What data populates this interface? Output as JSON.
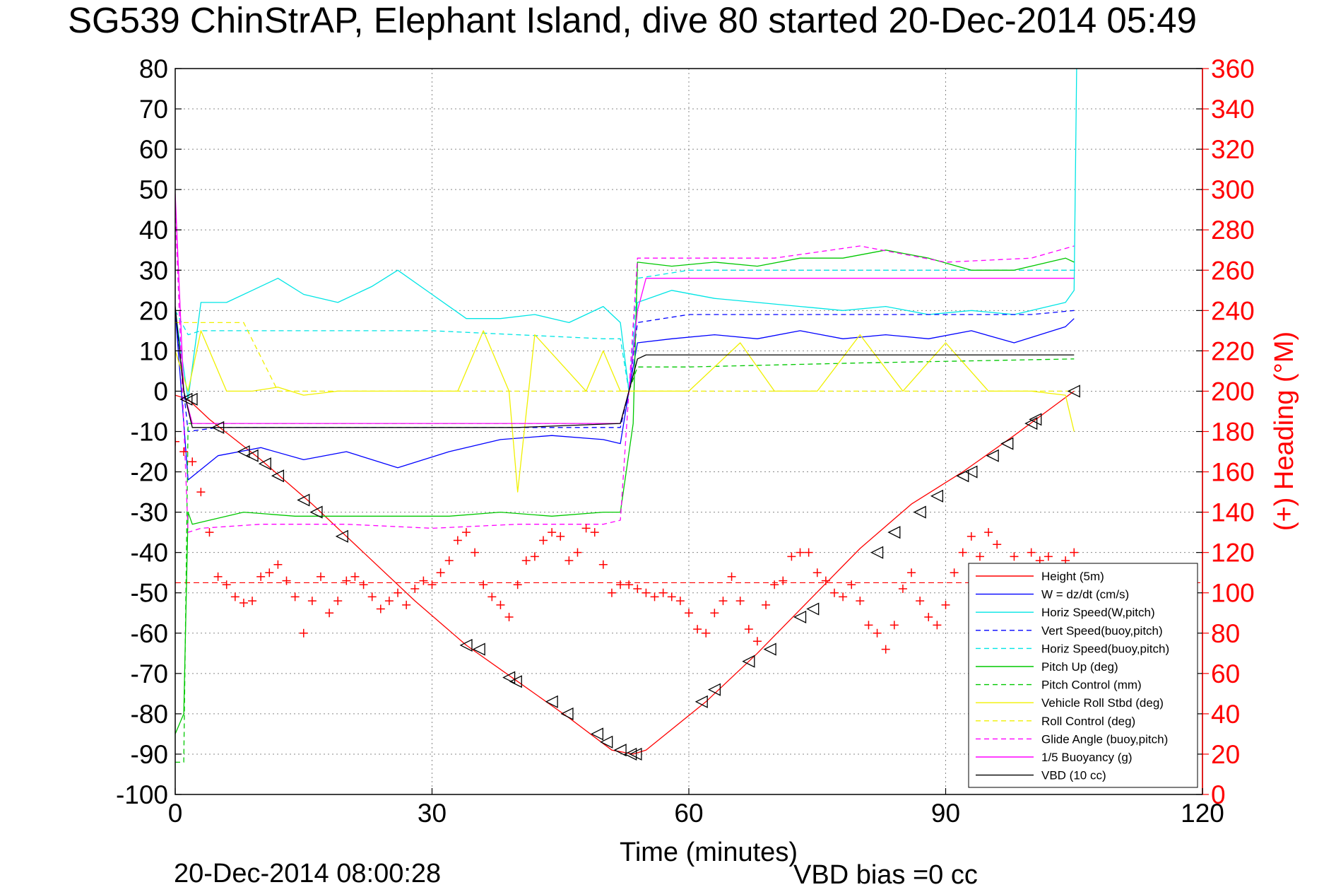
{
  "chart_data": {
    "type": "line",
    "title": "SG539 ChinStrAP, Elephant Island, dive 80 started 20-Dec-2014 05:49",
    "xlabel": "Time (minutes)",
    "ylabel_right": "(+) Heading (°M)",
    "footer_left": "20-Dec-2014 08:00:28",
    "footer_right": "VBD bias =0 cc",
    "xlim": [
      0,
      120
    ],
    "ylim_left": [
      -100,
      80
    ],
    "ylim_right": [
      0,
      360
    ],
    "x_ticks": [
      0,
      30,
      60,
      90,
      120
    ],
    "y_ticks_left": [
      80,
      70,
      60,
      50,
      40,
      30,
      20,
      10,
      0,
      -10,
      -20,
      -30,
      -40,
      -50,
      -60,
      -70,
      -80,
      -90,
      -100
    ],
    "y_ticks_right": [
      360,
      340,
      320,
      300,
      280,
      260,
      240,
      220,
      200,
      180,
      160,
      140,
      120,
      100,
      80,
      60,
      40,
      20,
      0
    ],
    "grid": true,
    "legend_position": "bottom-right",
    "colors": {
      "axis_right": "#ff0000",
      "grid": "#888888"
    },
    "series": [
      {
        "name": "Height (5m)",
        "color": "#ff0000",
        "dash": "solid",
        "x": [
          0,
          1.5,
          4,
          10,
          16,
          22,
          28,
          34,
          40,
          46,
          51,
          53.5,
          55,
          62,
          68,
          74,
          80,
          86,
          92,
          98,
          105
        ],
        "y": [
          -1,
          -2,
          -7,
          -17,
          -28,
          -40,
          -52,
          -63,
          -72,
          -81,
          -89,
          -90,
          -89,
          -77,
          -65,
          -52,
          -39,
          -28,
          -20,
          -11,
          0
        ]
      },
      {
        "name": "W = dz/dt (cm/s)",
        "color": "#0000ff",
        "dash": "solid",
        "x": [
          0,
          1.5,
          5,
          10,
          15,
          20,
          26,
          32,
          38,
          44,
          50,
          52,
          53,
          54,
          58,
          63,
          68,
          73,
          78,
          83,
          88,
          93,
          98,
          104,
          105
        ],
        "y": [
          20,
          -22,
          -16,
          -14,
          -17,
          -15,
          -19,
          -15,
          -12,
          -11,
          -12,
          -13,
          0,
          12,
          13,
          14,
          13,
          15,
          13,
          14,
          13,
          15,
          12,
          16,
          18
        ]
      },
      {
        "name": "Horiz Speed(W,pitch)",
        "color": "#00e5e5",
        "dash": "solid",
        "x": [
          0,
          1.5,
          3,
          6,
          9,
          12,
          15,
          19,
          23,
          26,
          30,
          34,
          38,
          42,
          46,
          50,
          52,
          53,
          54,
          58,
          63,
          68,
          73,
          78,
          83,
          88,
          93,
          98,
          104,
          105,
          105.3
        ],
        "y": [
          20,
          -2,
          22,
          22,
          25,
          28,
          24,
          22,
          26,
          30,
          24,
          18,
          18,
          19,
          17,
          21,
          17,
          0,
          22,
          25,
          23,
          22,
          21,
          20,
          21,
          19,
          20,
          19,
          22,
          25,
          80
        ]
      },
      {
        "name": "Vert Speed(buoy,pitch)",
        "color": "#0000ff",
        "dash": "dashed",
        "x": [
          0,
          1.5,
          5,
          20,
          35,
          50,
          52,
          53,
          54,
          60,
          70,
          80,
          90,
          100,
          105
        ],
        "y": [
          20,
          -10,
          -9,
          -9,
          -9,
          -9,
          -9,
          0,
          17,
          19,
          19,
          19,
          19,
          19,
          20
        ]
      },
      {
        "name": "Horiz Speed(buoy,pitch)",
        "color": "#00e5e5",
        "dash": "dashed",
        "x": [
          0,
          1.5,
          3,
          10,
          20,
          30,
          40,
          50,
          52,
          53,
          54,
          60,
          70,
          80,
          90,
          100,
          105
        ],
        "y": [
          20,
          14,
          15,
          15,
          15,
          15,
          14,
          13,
          13,
          0,
          28,
          30,
          30,
          30,
          30,
          30,
          30
        ]
      },
      {
        "name": "Pitch Up (deg)",
        "color": "#00c800",
        "dash": "solid",
        "x": [
          0,
          1,
          1.5,
          2,
          4,
          8,
          14,
          20,
          26,
          32,
          38,
          44,
          50,
          52,
          53.5,
          54,
          58,
          63,
          68,
          73,
          78,
          83,
          88,
          93,
          98,
          104,
          105
        ],
        "y": [
          -85,
          -80,
          -30,
          -33,
          -32,
          -30,
          -31,
          -31,
          -31,
          -31,
          -30,
          -31,
          -30,
          -30,
          -8,
          32,
          31,
          32,
          31,
          33,
          33,
          35,
          33,
          30,
          30,
          33,
          32
        ]
      },
      {
        "name": "Pitch Control (mm)",
        "color": "#00c800",
        "dash": "dashed",
        "x": [
          0,
          1,
          1.5,
          3,
          20,
          40,
          52,
          53,
          54,
          60,
          80,
          105
        ],
        "y": [
          -92,
          -92,
          -8,
          -8,
          -8,
          -8,
          -8,
          0,
          6,
          6,
          7,
          8
        ]
      },
      {
        "name": "Vehicle Roll Stbd (deg)",
        "color": "#f0f000",
        "dash": "solid",
        "x": [
          0,
          1.5,
          3,
          6,
          9,
          12,
          15,
          19,
          23,
          28,
          33,
          36,
          39,
          40,
          42,
          48,
          50,
          52,
          54,
          60,
          66,
          70,
          75,
          80,
          85,
          90,
          95,
          100,
          104,
          105
        ],
        "y": [
          10,
          0,
          15,
          0,
          0,
          1,
          -1,
          0,
          0,
          0,
          0,
          15,
          0,
          -25,
          14,
          0,
          10,
          0,
          0,
          0,
          12,
          0,
          0,
          14,
          0,
          12,
          0,
          0,
          -1,
          -10
        ]
      },
      {
        "name": "Roll Control (deg)",
        "color": "#f0f000",
        "dash": "dashed",
        "x": [
          0,
          1.5,
          2,
          8,
          12,
          20,
          30,
          40,
          52,
          54,
          60,
          70,
          80,
          90,
          100,
          105
        ],
        "y": [
          17,
          17,
          17,
          17,
          0,
          0,
          0,
          0,
          0,
          0,
          0,
          0,
          0,
          0,
          0,
          0
        ]
      },
      {
        "name": "Glide Angle (buoy,pitch)",
        "color": "#ff00ff",
        "dash": "dashed",
        "x": [
          0,
          1.5,
          3,
          10,
          20,
          30,
          40,
          50,
          52,
          53,
          54,
          60,
          70,
          80,
          90,
          100,
          105
        ],
        "y": [
          45,
          -35,
          -34,
          -33,
          -33,
          -34,
          -33,
          -33,
          -32,
          0,
          33,
          33,
          33,
          36,
          32,
          33,
          36
        ]
      },
      {
        "name": "1/5 Buoyancy (g)",
        "color": "#ff00ff",
        "dash": "solid",
        "x": [
          0,
          1,
          2,
          3,
          20,
          40,
          52,
          53,
          54,
          55,
          70,
          90,
          105
        ],
        "y": [
          49,
          0,
          -8,
          -8,
          -8,
          -8,
          -8,
          0,
          20,
          28,
          28,
          28,
          28
        ]
      },
      {
        "name": "VBD (10 cc)",
        "color": "#000000",
        "dash": "solid",
        "x": [
          0,
          1,
          2,
          3,
          20,
          40,
          52,
          53,
          54,
          55,
          70,
          90,
          105
        ],
        "y": [
          21,
          0,
          -9,
          -9,
          -9,
          -9,
          -8,
          0,
          8,
          9,
          9,
          9,
          9
        ]
      }
    ],
    "heading_series": {
      "name": "Heading",
      "color": "#ff0000",
      "marker": "+",
      "axis": "right",
      "x": [
        0,
        1,
        2,
        3,
        4,
        5,
        6,
        7,
        8,
        9,
        10,
        11,
        12,
        13,
        14,
        15,
        16,
        17,
        18,
        19,
        20,
        21,
        22,
        23,
        24,
        25,
        26,
        27,
        28,
        29,
        30,
        31,
        32,
        33,
        34,
        35,
        36,
        37,
        38,
        39,
        40,
        41,
        42,
        43,
        44,
        45,
        46,
        47,
        48,
        49,
        50,
        51,
        52,
        53,
        54,
        55,
        56,
        57,
        58,
        59,
        60,
        61,
        62,
        63,
        64,
        65,
        66,
        67,
        68,
        69,
        70,
        71,
        72,
        73,
        74,
        75,
        76,
        77,
        78,
        79,
        80,
        81,
        82,
        83,
        84,
        85,
        86,
        87,
        88,
        89,
        90,
        91,
        92,
        93,
        94,
        95,
        96,
        97,
        98,
        99,
        100,
        101,
        102,
        103,
        104,
        105
      ],
      "y": [
        175,
        170,
        165,
        150,
        130,
        108,
        104,
        98,
        95,
        96,
        108,
        110,
        114,
        106,
        98,
        80,
        96,
        108,
        90,
        96,
        106,
        108,
        104,
        98,
        92,
        96,
        100,
        94,
        102,
        106,
        104,
        110,
        116,
        126,
        130,
        120,
        104,
        98,
        94,
        88,
        104,
        116,
        118,
        126,
        130,
        128,
        116,
        120,
        132,
        130,
        114,
        100,
        104,
        104,
        102,
        100,
        98,
        100,
        98,
        96,
        90,
        82,
        80,
        90,
        96,
        108,
        96,
        82,
        76,
        94,
        104,
        106,
        118,
        120,
        120,
        110,
        106,
        100,
        98,
        104,
        96,
        84,
        80,
        72,
        84,
        102,
        110,
        96,
        88,
        84,
        94,
        110,
        120,
        128,
        118,
        130,
        124,
        110,
        118,
        112,
        120,
        116,
        118,
        112,
        116,
        120
      ]
    },
    "heading_mean": {
      "name": "Heading mean",
      "color": "#ff0000",
      "dash": "dashed",
      "axis": "right",
      "value": 105
    },
    "triangle_markers": {
      "name": "Depth markers",
      "color": "#000000",
      "marker": "triangle-left",
      "x": [
        1.3,
        1.9,
        5,
        8,
        9,
        10.5,
        12,
        15,
        16.5,
        19.5,
        34,
        35.5,
        39,
        39.8,
        44,
        45.8,
        49.3,
        50.4,
        52,
        53.2,
        53.8,
        61.5,
        63,
        67,
        69.5,
        73,
        74.5,
        82,
        84,
        87,
        89,
        92,
        93,
        95.5,
        97.2,
        100,
        100.5,
        105
      ],
      "y": [
        -2,
        -2,
        -9,
        -15,
        -16,
        -18,
        -21,
        -27,
        -30,
        -36,
        -63,
        -64,
        -71,
        -72,
        -77,
        -80,
        -85,
        -87,
        -89,
        -90,
        -90,
        -77,
        -74,
        -67,
        -64,
        -56,
        -54,
        -40,
        -35,
        -30,
        -26,
        -21,
        -20,
        -16,
        -13,
        -8,
        -7,
        0
      ]
    }
  }
}
